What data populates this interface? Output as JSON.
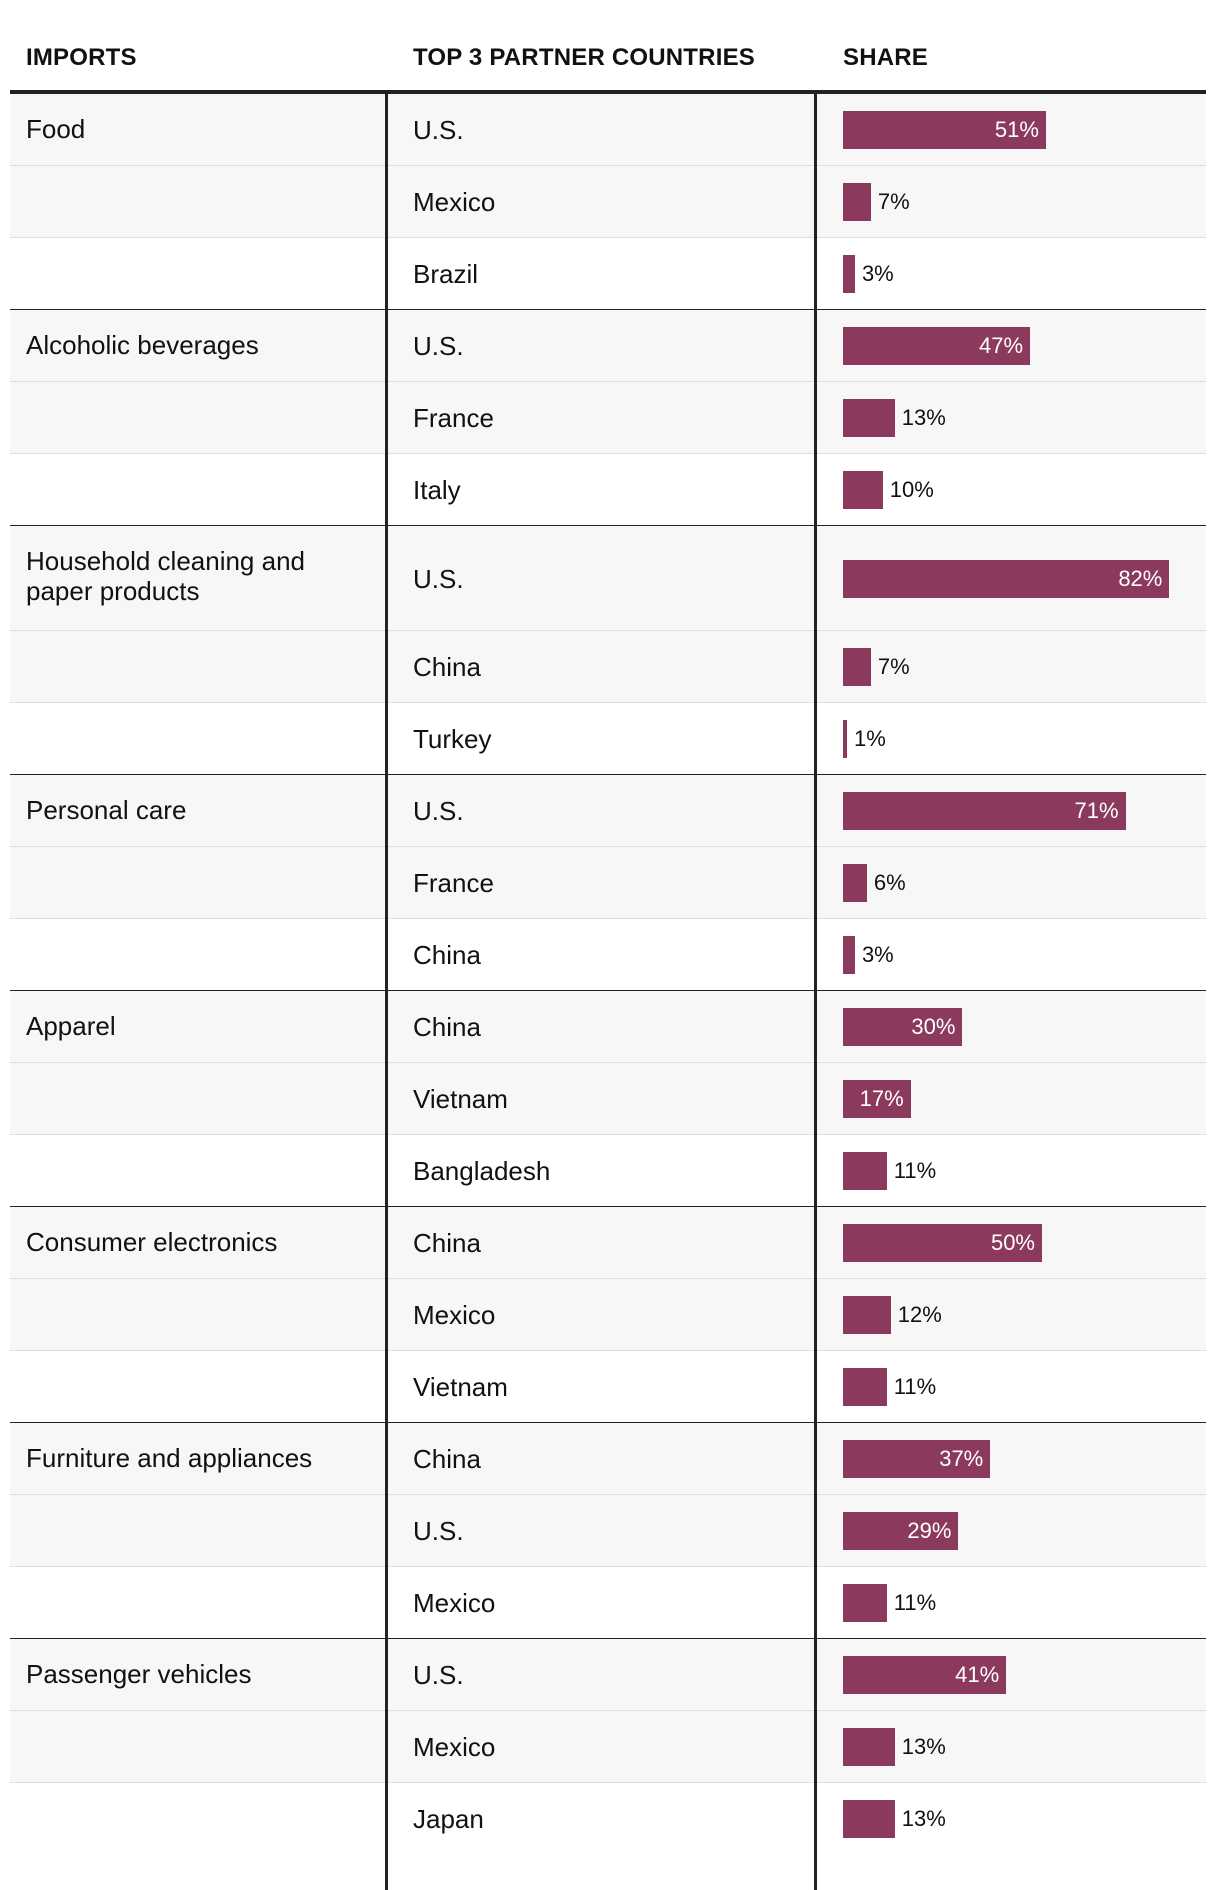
{
  "chart_data": {
    "type": "table",
    "columns": [
      "IMPORTS",
      "TOP 3 PARTNER COUNTRIES",
      "SHARE"
    ],
    "unit": "%",
    "groups": [
      {
        "category": "Food",
        "rows": [
          {
            "country": "U.S.",
            "share": 51,
            "label": "51%"
          },
          {
            "country": "Mexico",
            "share": 7,
            "label": "7%"
          },
          {
            "country": "Brazil",
            "share": 3,
            "label": "3%"
          }
        ]
      },
      {
        "category": "Alcoholic beverages",
        "rows": [
          {
            "country": "U.S.",
            "share": 47,
            "label": "47%"
          },
          {
            "country": "France",
            "share": 13,
            "label": "13%"
          },
          {
            "country": "Italy",
            "share": 10,
            "label": "10%"
          }
        ]
      },
      {
        "category": "Household cleaning and paper products",
        "rows": [
          {
            "country": "U.S.",
            "share": 82,
            "label": "82%"
          },
          {
            "country": "China",
            "share": 7,
            "label": "7%"
          },
          {
            "country": "Turkey",
            "share": 1,
            "label": "1%"
          }
        ]
      },
      {
        "category": "Personal care",
        "rows": [
          {
            "country": "U.S.",
            "share": 71,
            "label": "71%"
          },
          {
            "country": "France",
            "share": 6,
            "label": "6%"
          },
          {
            "country": "China",
            "share": 3,
            "label": "3%"
          }
        ]
      },
      {
        "category": "Apparel",
        "rows": [
          {
            "country": "China",
            "share": 30,
            "label": "30%"
          },
          {
            "country": "Vietnam",
            "share": 17,
            "label": "17%"
          },
          {
            "country": "Bangladesh",
            "share": 11,
            "label": "11%"
          }
        ]
      },
      {
        "category": "Consumer electronics",
        "rows": [
          {
            "country": "China",
            "share": 50,
            "label": "50%"
          },
          {
            "country": "Mexico",
            "share": 12,
            "label": "12%"
          },
          {
            "country": "Vietnam",
            "share": 11,
            "label": "11%"
          }
        ]
      },
      {
        "category": "Furniture and appliances",
        "rows": [
          {
            "country": "China",
            "share": 37,
            "label": "37%"
          },
          {
            "country": "U.S.",
            "share": 29,
            "label": "29%"
          },
          {
            "country": "Mexico",
            "share": 11,
            "label": "11%"
          }
        ]
      },
      {
        "category": "Passenger vehicles",
        "rows": [
          {
            "country": "U.S.",
            "share": 41,
            "label": "41%"
          },
          {
            "country": "Mexico",
            "share": 13,
            "label": "13%"
          },
          {
            "country": "Japan",
            "share": 13,
            "label": "13%"
          }
        ]
      }
    ]
  },
  "colors": {
    "bar": "#8b3a5e",
    "band": "#f7f7f7",
    "rule": "#222222"
  }
}
